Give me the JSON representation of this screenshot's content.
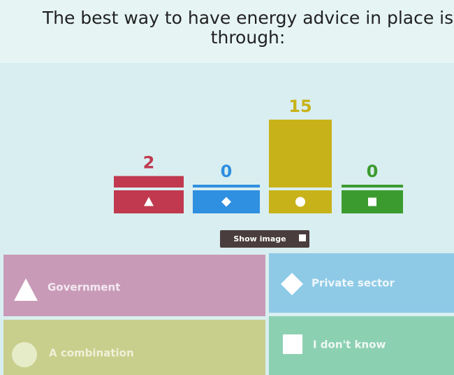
{
  "question": "The best way to have energy advice in place is through:",
  "results": {
    "values": [
      2,
      0,
      15,
      0
    ],
    "colors": [
      "#c0394f",
      "#2f8fe0",
      "#c8b21a",
      "#3b9b2f"
    ]
  },
  "button": "Show image",
  "answers": [
    "Government",
    "Private sector",
    "A combination",
    "I don't know"
  ]
}
